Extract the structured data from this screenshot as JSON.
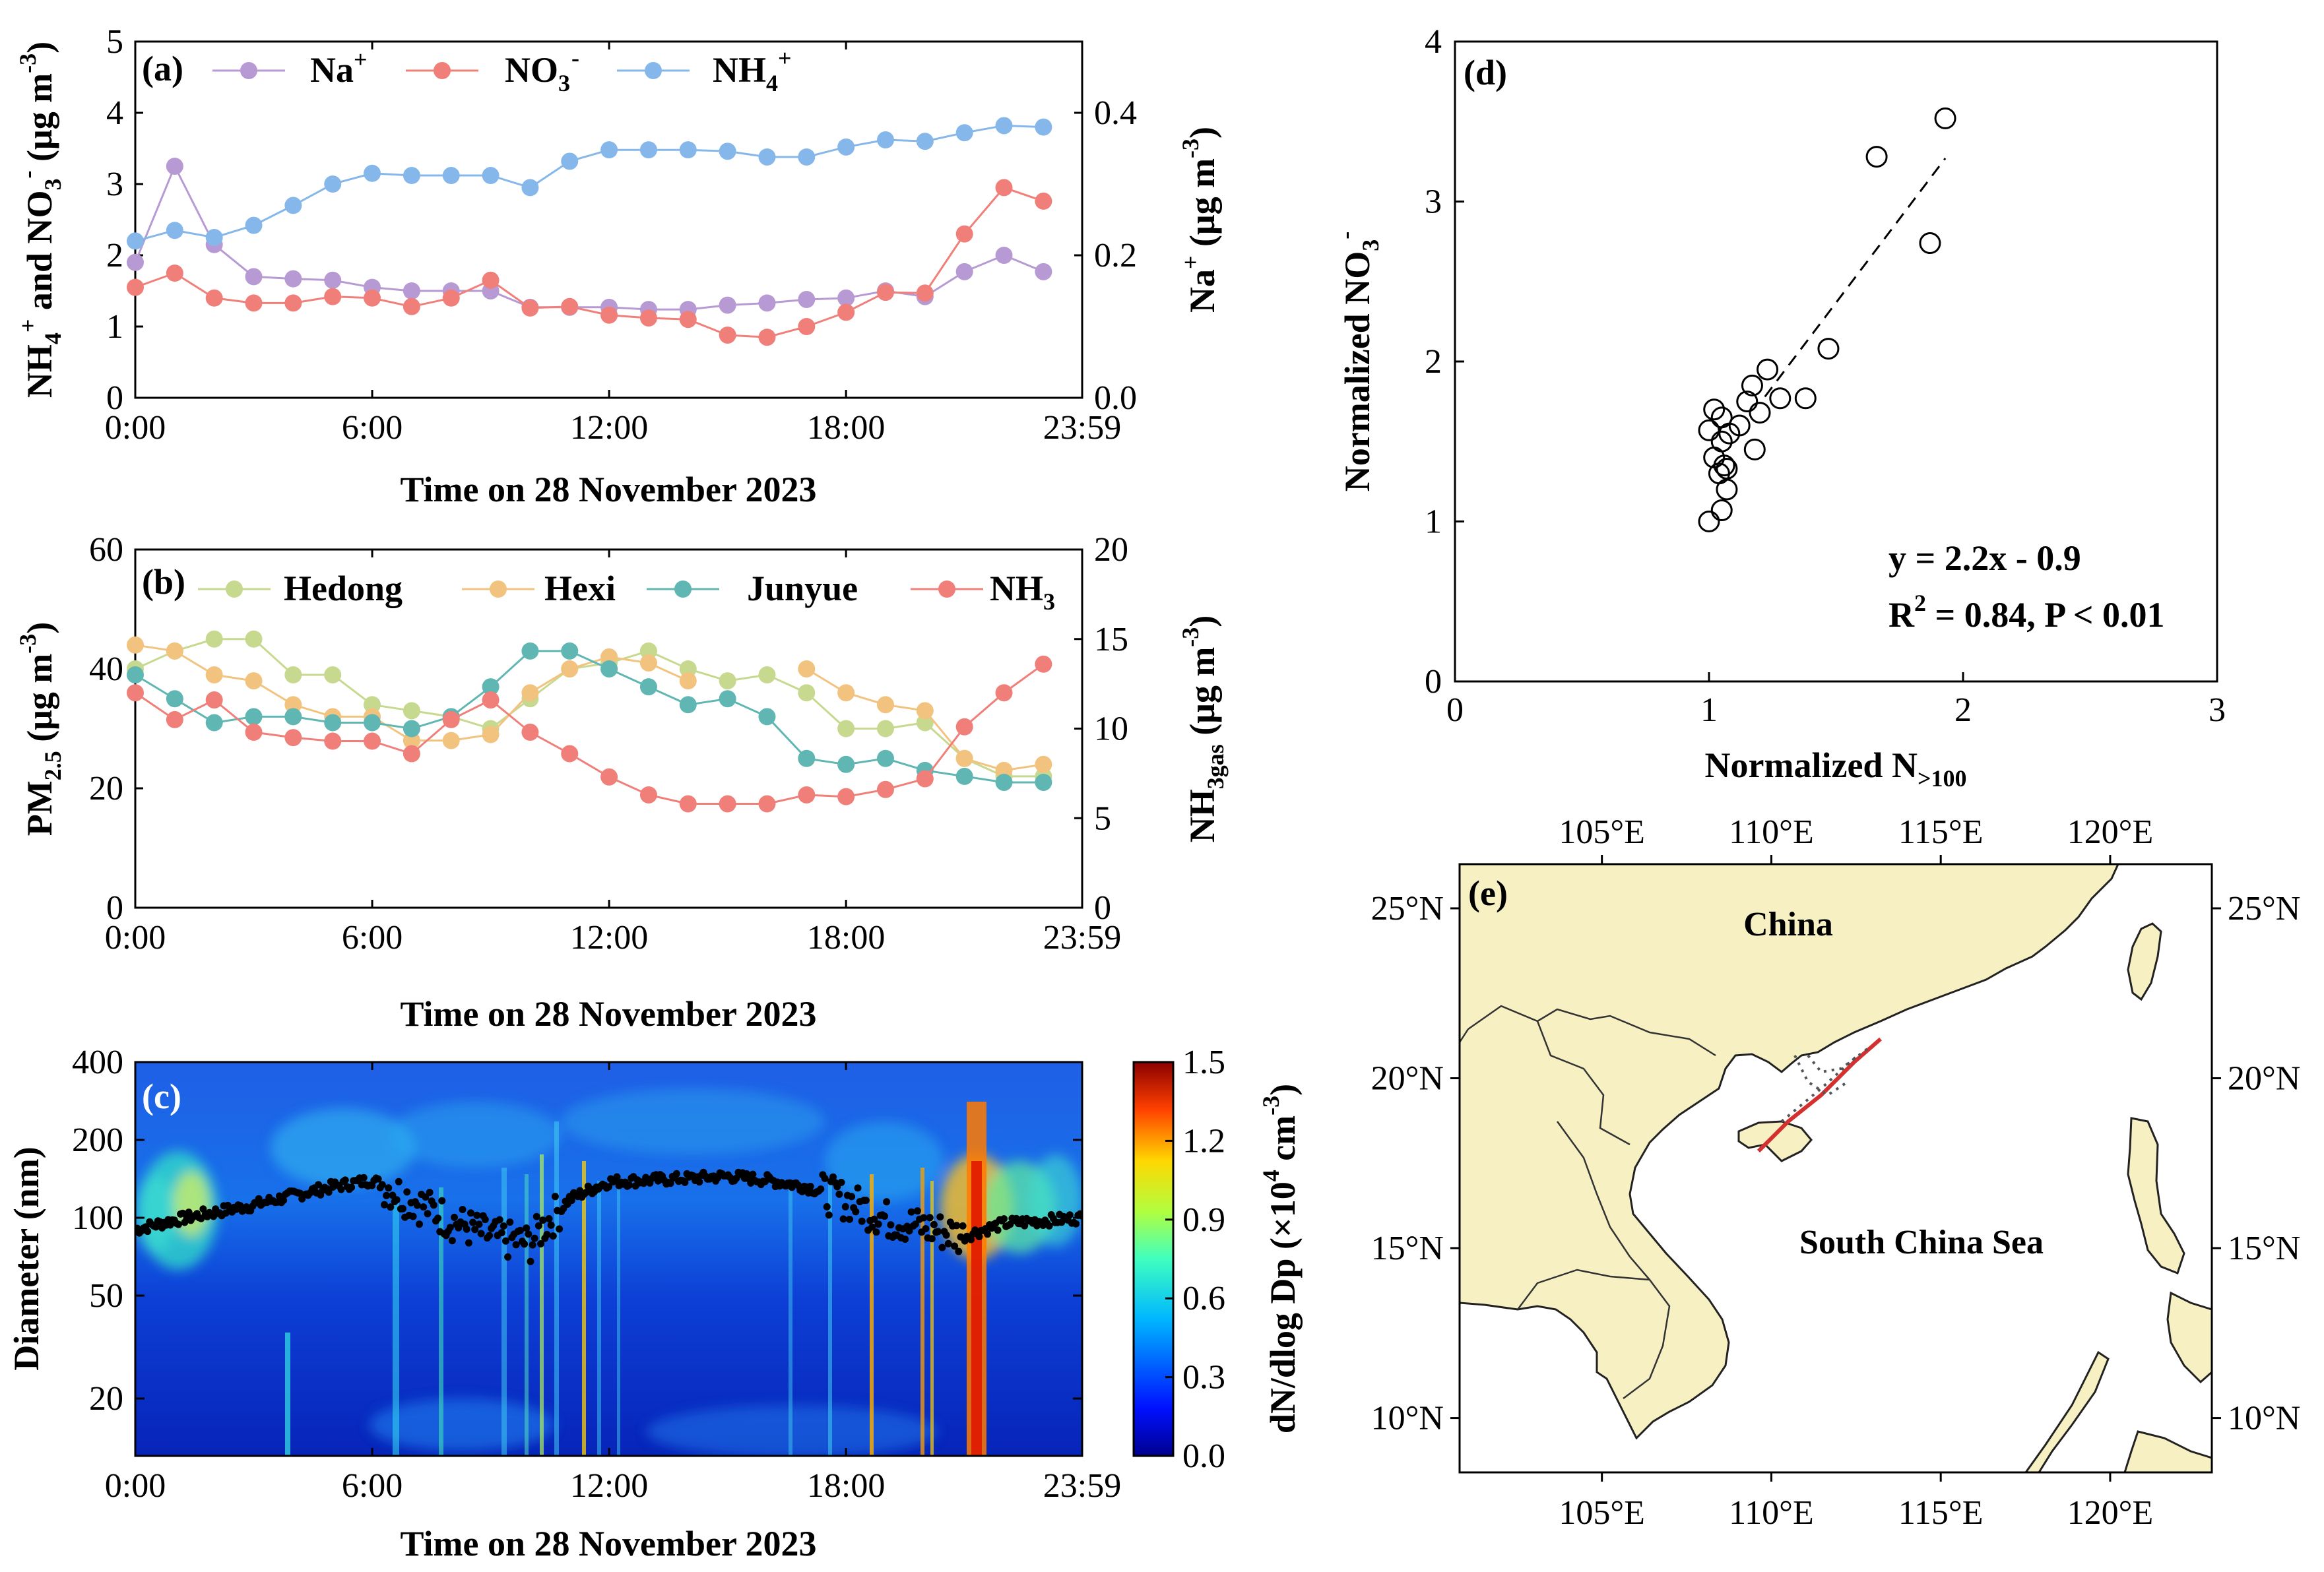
{
  "figure": {
    "colors": {
      "na": "#b79ad3",
      "no3": "#f07f7a",
      "nh4": "#86b7ea",
      "hedong": "#c7d98f",
      "hexi": "#f2c37e",
      "junyue": "#5fb6b2",
      "nh3": "#f07f7a",
      "land": "#f7f0c2",
      "axis": "#000000"
    }
  },
  "chart_data": [
    {
      "id": "a",
      "type": "line",
      "panel_label": "(a)",
      "xlabel": "Time on 28 November 2023",
      "xticks": [
        "0:00",
        "6:00",
        "12:00",
        "18:00",
        "23:59"
      ],
      "x_hours": [
        0,
        1,
        2,
        3,
        4,
        5,
        6,
        7,
        8,
        9,
        10,
        11,
        12,
        13,
        14,
        15,
        16,
        17,
        18,
        19,
        20,
        21,
        22,
        23
      ],
      "ylabel_left": {
        "p1": "NH",
        "s1": "4",
        "u1": "+",
        "p2": " and NO",
        "s2": "3",
        "u2": "-",
        "p3": " (μg m",
        "u3": "-3",
        "p4": ")"
      },
      "ylabel_right": {
        "p1": "Na",
        "u1": "+",
        "p2": " (μg m",
        "u2": "-3",
        "p3": ")"
      },
      "ylim_left": [
        0,
        5
      ],
      "yticks_left": [
        "0",
        "1",
        "2",
        "3",
        "4",
        "5"
      ],
      "ylim_right": [
        0,
        0.5
      ],
      "yticks_right": [
        "0.0",
        "0.2",
        "0.4"
      ],
      "legend": [
        {
          "base": "Na",
          "sup": "+",
          "sub": ""
        },
        {
          "base": "NO",
          "sup": "-",
          "sub": "3"
        },
        {
          "base": "NH",
          "sup": "+",
          "sub": "4"
        }
      ],
      "series": [
        {
          "name": "Na+",
          "axis": "right",
          "values": [
            0.19,
            0.325,
            0.215,
            0.17,
            0.167,
            0.165,
            0.155,
            0.15,
            0.15,
            0.15,
            0.127,
            0.127,
            0.127,
            0.124,
            0.124,
            0.13,
            0.133,
            0.138,
            0.14,
            0.15,
            0.142,
            0.177,
            0.2,
            0.177
          ]
        },
        {
          "name": "NO3-",
          "axis": "left",
          "values": [
            1.55,
            1.75,
            1.4,
            1.33,
            1.33,
            1.42,
            1.4,
            1.28,
            1.4,
            1.65,
            1.26,
            1.28,
            1.16,
            1.12,
            1.1,
            0.88,
            0.85,
            1.0,
            1.2,
            1.48,
            1.47,
            2.3,
            2.95,
            2.76
          ]
        },
        {
          "name": "NH4+",
          "axis": "left",
          "values": [
            2.2,
            2.35,
            2.25,
            2.42,
            2.7,
            3.0,
            3.15,
            3.12,
            3.12,
            3.12,
            2.95,
            3.32,
            3.48,
            3.48,
            3.48,
            3.46,
            3.38,
            3.38,
            3.52,
            3.62,
            3.6,
            3.72,
            3.82,
            3.8
          ]
        }
      ]
    },
    {
      "id": "b",
      "type": "line",
      "panel_label": "(b)",
      "xlabel": "Time on 28 November 2023",
      "xticks": [
        "0:00",
        "6:00",
        "12:00",
        "18:00",
        "23:59"
      ],
      "x_hours": [
        0,
        1,
        2,
        3,
        4,
        5,
        6,
        7,
        8,
        9,
        10,
        11,
        12,
        13,
        14,
        15,
        16,
        17,
        18,
        19,
        20,
        21,
        22,
        23
      ],
      "ylabel_left": {
        "p1": "PM",
        "s1": "2.5",
        "p2": " (μg m",
        "u2": "-3",
        "p3": ")"
      },
      "ylabel_right": {
        "p1": "NH",
        "s1": "3gas",
        "p2": " (μg m",
        "u2": "-3",
        "p3": ")"
      },
      "ylim_left": [
        0,
        60
      ],
      "yticks_left": [
        "0",
        "20",
        "40",
        "60"
      ],
      "ylim_right": [
        0,
        20
      ],
      "yticks_right": [
        "0",
        "5",
        "10",
        "15",
        "20"
      ],
      "legend": [
        {
          "base": "Hedong",
          "sup": "",
          "sub": ""
        },
        {
          "base": "Hexi",
          "sup": "",
          "sub": ""
        },
        {
          "base": "Junyue",
          "sup": "",
          "sub": ""
        },
        {
          "base": "NH",
          "sup": "",
          "sub": "3"
        }
      ],
      "series": [
        {
          "name": "Hedong",
          "axis": "left",
          "values": [
            40,
            43,
            45,
            45,
            39,
            39,
            34,
            33,
            32,
            30,
            35,
            40,
            41,
            43,
            40,
            38,
            39,
            36,
            30,
            30,
            31,
            25,
            22,
            22
          ]
        },
        {
          "name": "Hexi",
          "axis": "left",
          "values": [
            44,
            43,
            39,
            38,
            34,
            32,
            32,
            28,
            28,
            29,
            36,
            40,
            42,
            41,
            38,
            null,
            null,
            40,
            36,
            34,
            33,
            25,
            23,
            24
          ]
        },
        {
          "name": "Junyue",
          "axis": "left",
          "values": [
            39,
            35,
            31,
            32,
            32,
            31,
            31,
            30,
            32,
            37,
            43,
            43,
            40,
            37,
            34,
            35,
            32,
            25,
            24,
            25,
            23,
            22,
            21,
            21
          ]
        },
        {
          "name": "NH3",
          "axis": "right",
          "values": [
            12.0,
            10.5,
            11.6,
            9.8,
            9.5,
            9.3,
            9.3,
            8.6,
            10.5,
            11.6,
            9.8,
            8.6,
            7.3,
            6.3,
            5.8,
            5.8,
            5.8,
            6.3,
            6.2,
            6.6,
            7.2,
            10.1,
            12.0,
            13.6
          ]
        }
      ]
    },
    {
      "id": "c",
      "type": "heatmap",
      "panel_label": "(c)",
      "xlabel": "Time on 28 November 2023",
      "xticks": [
        "0:00",
        "6:00",
        "12:00",
        "18:00",
        "23:59"
      ],
      "ylabel": "Diameter (nm)",
      "ylim": [
        12,
        400
      ],
      "yticks": [
        "20",
        "50",
        "100",
        "200",
        "400"
      ],
      "ytick_values": [
        20,
        50,
        100,
        200,
        400
      ],
      "colorbar_label": {
        "p1": "dN/dlog Dp (×10",
        "u1": "4",
        "p2": " cm",
        "u2": "-3",
        "p3": ")"
      },
      "colorbar_range": [
        0,
        1.5
      ],
      "colorbar_ticks": [
        "0.0",
        "0.3",
        "0.6",
        "0.9",
        "1.2",
        "1.5"
      ],
      "mode_diameter_x_hours": [
        0,
        1,
        2,
        3,
        4,
        5,
        6,
        7,
        8,
        9,
        10,
        11,
        12,
        13,
        14,
        15,
        16,
        17,
        18,
        19,
        20,
        21,
        22,
        23.98
      ],
      "mode_diameter_nm": [
        90,
        98,
        105,
        112,
        122,
        132,
        140,
        118,
        98,
        85,
        80,
        118,
        138,
        140,
        142,
        145,
        140,
        132,
        118,
        100,
        92,
        85,
        95,
        100
      ]
    },
    {
      "id": "d",
      "type": "scatter",
      "panel_label": "(d)",
      "xlabel": {
        "p1": "Normalized N",
        "s1": ">100"
      },
      "ylabel": {
        "p1": "Normalized NO",
        "s1": "3",
        "u1": "-"
      },
      "xlim": [
        0,
        3
      ],
      "ylim": [
        0,
        4
      ],
      "xticks": [
        "0",
        "1",
        "2",
        "3"
      ],
      "yticks": [
        "0",
        "1",
        "2",
        "3",
        "4"
      ],
      "x": [
        1.0,
        1.05,
        1.07,
        1.04,
        1.06,
        1.02,
        1.05,
        1.08,
        1.12,
        1.0,
        1.02,
        1.05,
        1.18,
        1.07,
        1.15,
        1.2,
        1.17,
        1.23,
        1.28,
        1.38,
        1.47,
        1.66,
        1.87,
        1.93
      ],
      "y": [
        1.0,
        1.07,
        1.2,
        1.3,
        1.35,
        1.4,
        1.5,
        1.55,
        1.6,
        1.57,
        1.7,
        1.65,
        1.45,
        1.33,
        1.75,
        1.68,
        1.85,
        1.95,
        1.77,
        1.77,
        2.08,
        3.28,
        2.74,
        3.52
      ],
      "fit_line": {
        "x0": 1.22,
        "y0": 1.78,
        "x1": 1.93,
        "y1": 3.27
      },
      "annotation_equation": "y = 2.2x - 0.9",
      "annotation_r2": {
        "p1": "R",
        "u1": "2",
        "p2": " = 0.84, P < 0.01"
      }
    }
  ],
  "map": {
    "panel_label": "(e)",
    "lon_ticks": [
      "105°E",
      "110°E",
      "115°E",
      "120°E"
    ],
    "lat_ticks": [
      "25°N",
      "20°N",
      "15°N",
      "10°N"
    ],
    "lon_values": [
      105,
      110,
      115,
      120
    ],
    "lat_values": [
      25,
      20,
      15,
      10
    ],
    "place_china": "China",
    "place_sea": "South China Sea"
  }
}
